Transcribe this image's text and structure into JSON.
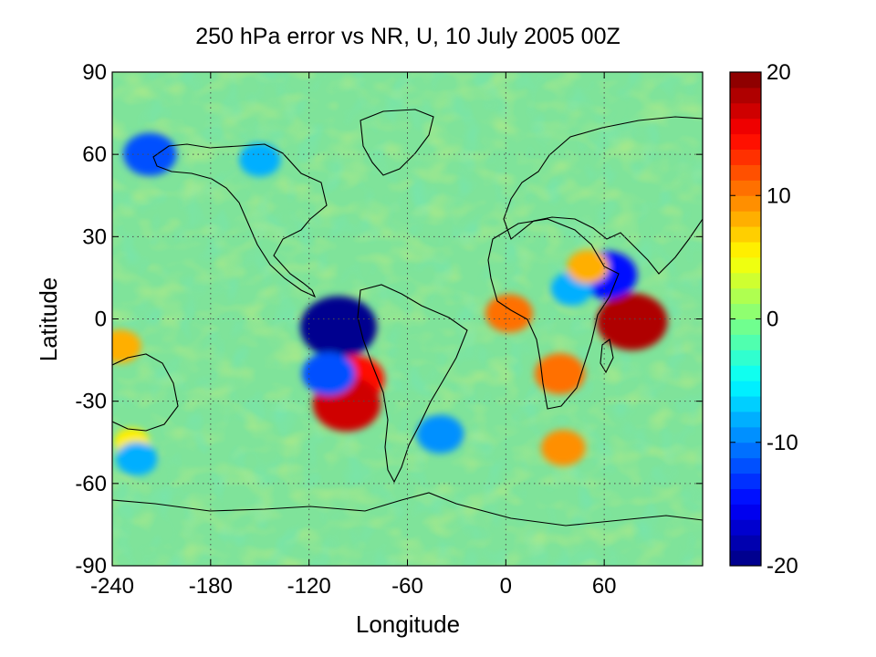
{
  "chart_data": {
    "type": "heatmap",
    "title": "250 hPa error vs NR, U, 10 July 2005 00Z",
    "xlabel": "Longitude",
    "ylabel": "Latitude",
    "xlim": [
      -240,
      120
    ],
    "ylim": [
      -90,
      90
    ],
    "xticks": [
      -240,
      -180,
      -120,
      -60,
      0,
      60
    ],
    "yticks": [
      -90,
      -60,
      -30,
      0,
      30,
      60,
      90
    ],
    "grid": true,
    "colorbar": {
      "range": [
        -20,
        20
      ],
      "ticks": [
        -20,
        -10,
        0,
        10,
        20
      ],
      "colormap": "jet",
      "levels": 20
    },
    "features": [
      {
        "label": "strong negative",
        "lon": -102,
        "lat": -3,
        "value": -20
      },
      {
        "label": "strong positive",
        "lon": 77,
        "lat": -1,
        "value": 18
      },
      {
        "label": "positive",
        "lon": -92,
        "lat": -22,
        "value": 14
      },
      {
        "label": "positive",
        "lon": -97,
        "lat": -31,
        "value": 17
      },
      {
        "label": "negative",
        "lon": -108,
        "lat": -20,
        "value": -12
      },
      {
        "label": "positive",
        "lon": 2,
        "lat": 2,
        "value": 10
      },
      {
        "label": "negative",
        "lon": 62,
        "lat": 16,
        "value": -14
      },
      {
        "label": "negative",
        "lon": 40,
        "lat": 11,
        "value": -8
      },
      {
        "label": "positive",
        "lon": 50,
        "lat": 19,
        "value": 8
      },
      {
        "label": "positive",
        "lon": 33,
        "lat": -20,
        "value": 11
      },
      {
        "label": "negative",
        "lon": -40,
        "lat": -42,
        "value": -10
      },
      {
        "label": "positive",
        "lon": 35,
        "lat": -47,
        "value": 9
      },
      {
        "label": "negative",
        "lon": -217,
        "lat": 60,
        "value": -12
      },
      {
        "label": "negative",
        "lon": -150,
        "lat": 58,
        "value": -8
      },
      {
        "label": "positive",
        "lon": -228,
        "lat": -45,
        "value": 6
      },
      {
        "label": "negative",
        "lon": -225,
        "lat": -51,
        "value": -8
      },
      {
        "label": "positive",
        "lon": -235,
        "lat": -10,
        "value": 8
      }
    ]
  },
  "colors": {
    "jet": [
      "#00008f",
      "#0000af",
      "#0000cf",
      "#0000ef",
      "#0010ff",
      "#0030ff",
      "#0050ff",
      "#0070ff",
      "#0090ff",
      "#00afff",
      "#00cfff",
      "#00efff",
      "#10ffef",
      "#30ffcf",
      "#50ffaf",
      "#70ff8f",
      "#8fff70",
      "#afff50",
      "#cfff30",
      "#efff10",
      "#ffef00",
      "#ffcf00",
      "#ffaf00",
      "#ff8f00",
      "#ff7000",
      "#ff5000",
      "#ff3000",
      "#ff1000",
      "#ef0000",
      "#cf0000",
      "#af0000",
      "#8f0000"
    ],
    "background": "#7fe39a",
    "coast": "#000000",
    "grid": "#4d4d4d"
  }
}
